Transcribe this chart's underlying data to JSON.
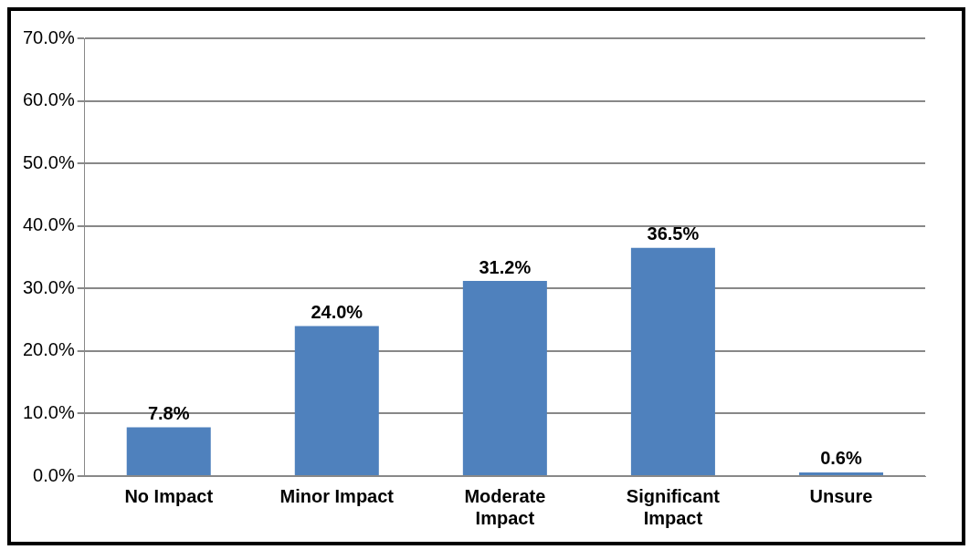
{
  "chart_data": {
    "type": "bar",
    "categories": [
      "No Impact",
      "Minor Impact",
      "Moderate Impact",
      "Significant Impact",
      "Unsure"
    ],
    "values": [
      7.8,
      24.0,
      31.2,
      36.5,
      0.6
    ],
    "value_labels": [
      "7.8%",
      "24.0%",
      "31.2%",
      "36.5%",
      "0.6%"
    ],
    "color": "#4f81bd",
    "ylim": [
      0,
      70
    ],
    "yticks": [
      {
        "value": 0,
        "label": "0.0%"
      },
      {
        "value": 10,
        "label": "10.0%"
      },
      {
        "value": 20,
        "label": "20.0%"
      },
      {
        "value": 30,
        "label": "30.0%"
      },
      {
        "value": 40,
        "label": "40.0%"
      },
      {
        "value": 50,
        "label": "50.0%"
      },
      {
        "value": 60,
        "label": "60.0%"
      },
      {
        "value": 70,
        "label": "70.0%"
      }
    ],
    "grid": "y"
  }
}
